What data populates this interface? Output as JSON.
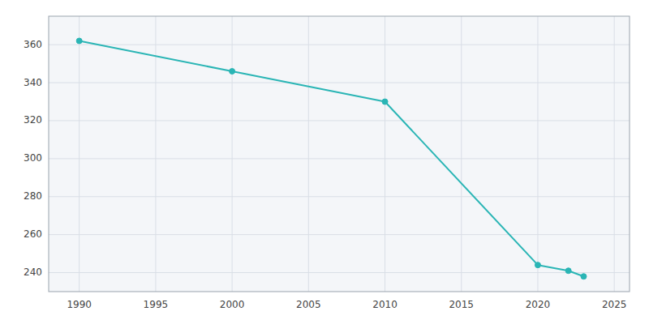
{
  "chart_data": {
    "type": "line",
    "x": [
      1990,
      2000,
      2010,
      2020,
      2022,
      2023
    ],
    "values": [
      362,
      346,
      330,
      244,
      241,
      238
    ],
    "color": "#2ab5b5",
    "marker": "circle",
    "xlim": [
      1988,
      2026
    ],
    "ylim": [
      230,
      375
    ],
    "xticks": [
      1990,
      1995,
      2000,
      2005,
      2010,
      2015,
      2020,
      2025
    ],
    "yticks": [
      240,
      260,
      280,
      300,
      320,
      340,
      360
    ],
    "grid": true
  }
}
